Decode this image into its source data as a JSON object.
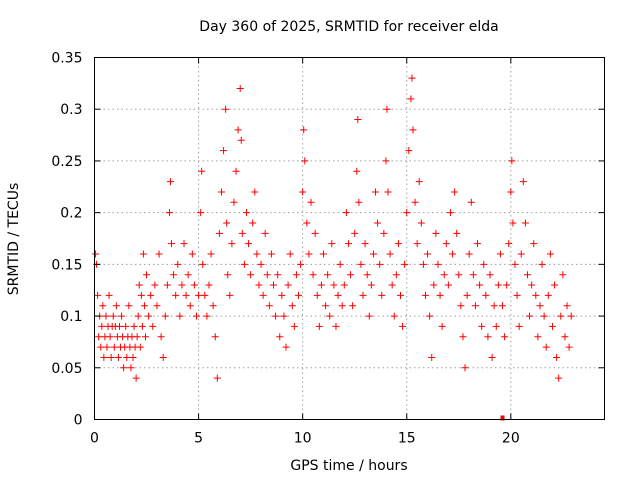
{
  "chart_data": {
    "type": "scatter",
    "title": "Day 360 of 2025, SRMTID for receiver elda",
    "xlabel": "GPS time / hours",
    "ylabel": "SRMTID / TECUs",
    "xlim": [
      0,
      24.5
    ],
    "ylim": [
      0,
      0.35
    ],
    "x_ticks": [
      0,
      5,
      10,
      15,
      20
    ],
    "x_tick_labels": [
      "0",
      "5",
      "10",
      "15",
      "20"
    ],
    "y_ticks": [
      0,
      0.05,
      0.1,
      0.15,
      0.2,
      0.25,
      0.3,
      0.35
    ],
    "y_tick_labels": [
      "0",
      "0.05",
      "0.1",
      "0.15",
      "0.2",
      "0.25",
      "0.3",
      "0.35"
    ],
    "grid": true,
    "marker": "plus",
    "series_color": "#ff0000",
    "series": [
      {
        "name": "SRMTID",
        "points": [
          [
            0.05,
            0.16
          ],
          [
            0.1,
            0.15
          ],
          [
            0.15,
            0.12
          ],
          [
            0.2,
            0.08
          ],
          [
            0.25,
            0.1
          ],
          [
            0.3,
            0.07
          ],
          [
            0.35,
            0.09
          ],
          [
            0.4,
            0.11
          ],
          [
            0.45,
            0.06
          ],
          [
            0.5,
            0.08
          ],
          [
            0.55,
            0.1
          ],
          [
            0.6,
            0.07
          ],
          [
            0.65,
            0.09
          ],
          [
            0.7,
            0.12
          ],
          [
            0.75,
            0.08
          ],
          [
            0.8,
            0.06
          ],
          [
            0.85,
            0.09
          ],
          [
            0.9,
            0.1
          ],
          [
            0.95,
            0.07
          ],
          [
            1.0,
            0.09
          ],
          [
            1.05,
            0.11
          ],
          [
            1.1,
            0.08
          ],
          [
            1.15,
            0.06
          ],
          [
            1.2,
            0.09
          ],
          [
            1.25,
            0.07
          ],
          [
            1.3,
            0.1
          ],
          [
            1.35,
            0.08
          ],
          [
            1.4,
            0.05
          ],
          [
            1.45,
            0.07
          ],
          [
            1.5,
            0.09
          ],
          [
            1.55,
            0.06
          ],
          [
            1.6,
            0.08
          ],
          [
            1.65,
            0.11
          ],
          [
            1.7,
            0.07
          ],
          [
            1.75,
            0.05
          ],
          [
            1.8,
            0.08
          ],
          [
            1.85,
            0.06
          ],
          [
            1.9,
            0.09
          ],
          [
            1.95,
            0.07
          ],
          [
            2.0,
            0.04
          ],
          [
            2.05,
            0.08
          ],
          [
            2.1,
            0.1
          ],
          [
            2.15,
            0.13
          ],
          [
            2.2,
            0.07
          ],
          [
            2.25,
            0.12
          ],
          [
            2.3,
            0.09
          ],
          [
            2.35,
            0.16
          ],
          [
            2.4,
            0.11
          ],
          [
            2.45,
            0.08
          ],
          [
            2.5,
            0.14
          ],
          [
            2.6,
            0.1
          ],
          [
            2.7,
            0.12
          ],
          [
            2.8,
            0.09
          ],
          [
            2.9,
            0.13
          ],
          [
            3.0,
            0.11
          ],
          [
            3.1,
            0.16
          ],
          [
            3.2,
            0.08
          ],
          [
            3.3,
            0.06
          ],
          [
            3.4,
            0.1
          ],
          [
            3.5,
            0.13
          ],
          [
            3.6,
            0.2
          ],
          [
            3.65,
            0.23
          ],
          [
            3.7,
            0.17
          ],
          [
            3.8,
            0.14
          ],
          [
            3.9,
            0.12
          ],
          [
            4.0,
            0.15
          ],
          [
            4.1,
            0.1
          ],
          [
            4.2,
            0.13
          ],
          [
            4.3,
            0.17
          ],
          [
            4.4,
            0.12
          ],
          [
            4.5,
            0.14
          ],
          [
            4.6,
            0.11
          ],
          [
            4.7,
            0.16
          ],
          [
            4.8,
            0.13
          ],
          [
            4.9,
            0.1
          ],
          [
            5.0,
            0.12
          ],
          [
            5.1,
            0.2
          ],
          [
            5.15,
            0.24
          ],
          [
            5.2,
            0.15
          ],
          [
            5.3,
            0.12
          ],
          [
            5.4,
            0.1
          ],
          [
            5.5,
            0.13
          ],
          [
            5.6,
            0.16
          ],
          [
            5.7,
            0.11
          ],
          [
            5.8,
            0.08
          ],
          [
            5.9,
            0.04
          ],
          [
            6.0,
            0.18
          ],
          [
            6.1,
            0.22
          ],
          [
            6.2,
            0.26
          ],
          [
            6.3,
            0.3
          ],
          [
            6.35,
            0.19
          ],
          [
            6.4,
            0.14
          ],
          [
            6.5,
            0.12
          ],
          [
            6.6,
            0.17
          ],
          [
            6.7,
            0.21
          ],
          [
            6.8,
            0.24
          ],
          [
            6.9,
            0.28
          ],
          [
            7.0,
            0.32
          ],
          [
            7.05,
            0.27
          ],
          [
            7.1,
            0.18
          ],
          [
            7.2,
            0.15
          ],
          [
            7.3,
            0.2
          ],
          [
            7.4,
            0.17
          ],
          [
            7.5,
            0.14
          ],
          [
            7.6,
            0.19
          ],
          [
            7.7,
            0.22
          ],
          [
            7.8,
            0.16
          ],
          [
            7.9,
            0.13
          ],
          [
            8.0,
            0.15
          ],
          [
            8.1,
            0.12
          ],
          [
            8.2,
            0.18
          ],
          [
            8.3,
            0.14
          ],
          [
            8.4,
            0.11
          ],
          [
            8.5,
            0.16
          ],
          [
            8.6,
            0.13
          ],
          [
            8.7,
            0.1
          ],
          [
            8.8,
            0.14
          ],
          [
            8.9,
            0.08
          ],
          [
            9.0,
            0.12
          ],
          [
            9.1,
            0.1
          ],
          [
            9.2,
            0.07
          ],
          [
            9.3,
            0.13
          ],
          [
            9.4,
            0.16
          ],
          [
            9.5,
            0.11
          ],
          [
            9.6,
            0.09
          ],
          [
            9.7,
            0.14
          ],
          [
            9.8,
            0.12
          ],
          [
            9.9,
            0.15
          ],
          [
            10.0,
            0.22
          ],
          [
            10.05,
            0.28
          ],
          [
            10.1,
            0.25
          ],
          [
            10.2,
            0.19
          ],
          [
            10.3,
            0.16
          ],
          [
            10.4,
            0.21
          ],
          [
            10.5,
            0.14
          ],
          [
            10.6,
            0.18
          ],
          [
            10.7,
            0.12
          ],
          [
            10.8,
            0.09
          ],
          [
            10.9,
            0.13
          ],
          [
            11.0,
            0.16
          ],
          [
            11.1,
            0.11
          ],
          [
            11.2,
            0.14
          ],
          [
            11.3,
            0.1
          ],
          [
            11.4,
            0.17
          ],
          [
            11.5,
            0.13
          ],
          [
            11.6,
            0.09
          ],
          [
            11.7,
            0.12
          ],
          [
            11.8,
            0.15
          ],
          [
            11.9,
            0.11
          ],
          [
            12.0,
            0.13
          ],
          [
            12.1,
            0.2
          ],
          [
            12.2,
            0.17
          ],
          [
            12.3,
            0.14
          ],
          [
            12.4,
            0.11
          ],
          [
            12.5,
            0.18
          ],
          [
            12.6,
            0.24
          ],
          [
            12.65,
            0.29
          ],
          [
            12.7,
            0.21
          ],
          [
            12.8,
            0.15
          ],
          [
            12.9,
            0.12
          ],
          [
            13.0,
            0.17
          ],
          [
            13.1,
            0.14
          ],
          [
            13.2,
            0.1
          ],
          [
            13.3,
            0.13
          ],
          [
            13.4,
            0.16
          ],
          [
            13.5,
            0.22
          ],
          [
            13.6,
            0.19
          ],
          [
            13.7,
            0.15
          ],
          [
            13.8,
            0.12
          ],
          [
            13.9,
            0.18
          ],
          [
            14.0,
            0.25
          ],
          [
            14.05,
            0.3
          ],
          [
            14.1,
            0.22
          ],
          [
            14.2,
            0.16
          ],
          [
            14.3,
            0.13
          ],
          [
            14.4,
            0.1
          ],
          [
            14.5,
            0.14
          ],
          [
            14.6,
            0.17
          ],
          [
            14.7,
            0.12
          ],
          [
            14.8,
            0.09
          ],
          [
            14.9,
            0.15
          ],
          [
            15.0,
            0.2
          ],
          [
            15.1,
            0.26
          ],
          [
            15.2,
            0.31
          ],
          [
            15.25,
            0.33
          ],
          [
            15.3,
            0.28
          ],
          [
            15.4,
            0.21
          ],
          [
            15.5,
            0.17
          ],
          [
            15.6,
            0.23
          ],
          [
            15.7,
            0.19
          ],
          [
            15.8,
            0.15
          ],
          [
            15.9,
            0.12
          ],
          [
            16.0,
            0.16
          ],
          [
            16.1,
            0.1
          ],
          [
            16.2,
            0.06
          ],
          [
            16.3,
            0.13
          ],
          [
            16.4,
            0.18
          ],
          [
            16.5,
            0.15
          ],
          [
            16.6,
            0.12
          ],
          [
            16.7,
            0.09
          ],
          [
            16.8,
            0.14
          ],
          [
            16.9,
            0.17
          ],
          [
            17.0,
            0.13
          ],
          [
            17.1,
            0.2
          ],
          [
            17.2,
            0.16
          ],
          [
            17.3,
            0.22
          ],
          [
            17.4,
            0.18
          ],
          [
            17.5,
            0.14
          ],
          [
            17.6,
            0.11
          ],
          [
            17.7,
            0.08
          ],
          [
            17.8,
            0.05
          ],
          [
            17.9,
            0.12
          ],
          [
            18.0,
            0.16
          ],
          [
            18.1,
            0.21
          ],
          [
            18.2,
            0.14
          ],
          [
            18.3,
            0.11
          ],
          [
            18.4,
            0.17
          ],
          [
            18.5,
            0.13
          ],
          [
            18.6,
            0.09
          ],
          [
            18.7,
            0.15
          ],
          [
            18.8,
            0.12
          ],
          [
            18.9,
            0.08
          ],
          [
            19.0,
            0.14
          ],
          [
            19.1,
            0.06
          ],
          [
            19.2,
            0.11
          ],
          [
            19.3,
            0.09
          ],
          [
            19.4,
            0.13
          ],
          [
            19.5,
            0.16
          ],
          [
            19.6,
            0.11
          ],
          [
            19.7,
            0.08
          ],
          [
            19.8,
            0.13
          ],
          [
            19.9,
            0.17
          ],
          [
            20.0,
            0.22
          ],
          [
            20.05,
            0.25
          ],
          [
            20.1,
            0.19
          ],
          [
            20.2,
            0.15
          ],
          [
            20.3,
            0.12
          ],
          [
            20.4,
            0.09
          ],
          [
            20.5,
            0.16
          ],
          [
            20.6,
            0.23
          ],
          [
            20.7,
            0.19
          ],
          [
            20.8,
            0.14
          ],
          [
            20.9,
            0.1
          ],
          [
            21.0,
            0.13
          ],
          [
            21.1,
            0.17
          ],
          [
            21.2,
            0.12
          ],
          [
            21.3,
            0.08
          ],
          [
            21.4,
            0.11
          ],
          [
            21.5,
            0.15
          ],
          [
            21.6,
            0.1
          ],
          [
            21.7,
            0.07
          ],
          [
            21.8,
            0.12
          ],
          [
            21.9,
            0.16
          ],
          [
            22.0,
            0.09
          ],
          [
            22.1,
            0.13
          ],
          [
            22.2,
            0.06
          ],
          [
            22.3,
            0.04
          ],
          [
            22.4,
            0.1
          ],
          [
            22.5,
            0.14
          ],
          [
            22.6,
            0.08
          ],
          [
            22.7,
            0.11
          ],
          [
            22.8,
            0.07
          ],
          [
            22.9,
            0.1
          ]
        ]
      }
    ],
    "extra_points": [
      [
        19.6,
        0.0
      ]
    ]
  }
}
